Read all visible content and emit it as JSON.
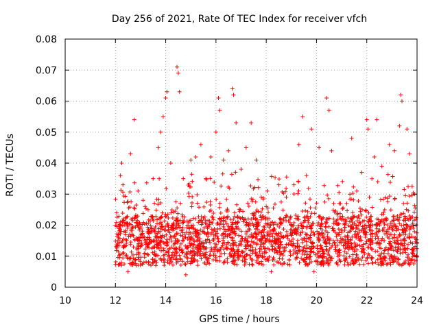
{
  "chart_data": {
    "type": "scatter",
    "title": "Day 256 of 2021, Rate Of TEC Index for receiver vfch",
    "xlabel": "GPS time / hours",
    "ylabel": "ROTI / TECUs",
    "xlim": [
      10,
      24
    ],
    "ylim": [
      0,
      0.08
    ],
    "grid": true,
    "marker": "+",
    "series_color": "#ff0000",
    "x_ticks": [
      10,
      12,
      14,
      16,
      18,
      20,
      22,
      24
    ],
    "x_tick_labels": [
      "10",
      "12",
      "14",
      "16",
      "18",
      "20",
      "22",
      "24"
    ],
    "y_ticks": [
      0,
      0.01,
      0.02,
      0.03,
      0.04,
      0.05,
      0.06,
      0.07,
      0.08
    ],
    "y_tick_labels": [
      "0",
      "0.01",
      "0.02",
      "0.03",
      "0.04",
      "0.05",
      "0.06",
      "0.07",
      "0.08"
    ],
    "series": [
      {
        "name": "ROTI",
        "points": [
          [
            12.0,
            0.02
          ],
          [
            12.05,
            0.024
          ],
          [
            12.1,
            0.015
          ],
          [
            12.2,
            0.036
          ],
          [
            12.25,
            0.04
          ],
          [
            12.3,
            0.033
          ],
          [
            12.5,
            0.005
          ],
          [
            12.6,
            0.043
          ],
          [
            12.75,
            0.054
          ],
          [
            12.9,
            0.031
          ],
          [
            13.1,
            0.028
          ],
          [
            13.3,
            0.025
          ],
          [
            13.5,
            0.035
          ],
          [
            13.7,
            0.045
          ],
          [
            13.8,
            0.05
          ],
          [
            13.9,
            0.055
          ],
          [
            14.0,
            0.061
          ],
          [
            14.05,
            0.063
          ],
          [
            14.2,
            0.04
          ],
          [
            14.45,
            0.071
          ],
          [
            14.5,
            0.069
          ],
          [
            14.55,
            0.063
          ],
          [
            14.7,
            0.035
          ],
          [
            14.8,
            0.004
          ],
          [
            15.0,
            0.041
          ],
          [
            15.2,
            0.042
          ],
          [
            15.4,
            0.046
          ],
          [
            15.6,
            0.035
          ],
          [
            15.8,
            0.042
          ],
          [
            16.0,
            0.05
          ],
          [
            16.1,
            0.061
          ],
          [
            16.15,
            0.057
          ],
          [
            16.3,
            0.041
          ],
          [
            16.5,
            0.044
          ],
          [
            16.65,
            0.064
          ],
          [
            16.7,
            0.062
          ],
          [
            16.8,
            0.053
          ],
          [
            17.0,
            0.038
          ],
          [
            17.2,
            0.045
          ],
          [
            17.4,
            0.053
          ],
          [
            17.6,
            0.041
          ],
          [
            17.8,
            0.029
          ],
          [
            18.0,
            0.026
          ],
          [
            18.2,
            0.005
          ],
          [
            18.5,
            0.033
          ],
          [
            18.8,
            0.029
          ],
          [
            19.1,
            0.033
          ],
          [
            19.3,
            0.046
          ],
          [
            19.45,
            0.055
          ],
          [
            19.6,
            0.036
          ],
          [
            19.8,
            0.051
          ],
          [
            19.9,
            0.005
          ],
          [
            20.1,
            0.045
          ],
          [
            20.4,
            0.061
          ],
          [
            20.5,
            0.057
          ],
          [
            20.6,
            0.044
          ],
          [
            20.9,
            0.027
          ],
          [
            21.2,
            0.027
          ],
          [
            21.4,
            0.048
          ],
          [
            21.6,
            0.031
          ],
          [
            21.8,
            0.037
          ],
          [
            22.0,
            0.054
          ],
          [
            22.05,
            0.051
          ],
          [
            22.3,
            0.042
          ],
          [
            22.4,
            0.054
          ],
          [
            22.6,
            0.039
          ],
          [
            22.9,
            0.046
          ],
          [
            23.1,
            0.044
          ],
          [
            23.3,
            0.052
          ],
          [
            23.35,
            0.062
          ],
          [
            23.4,
            0.06
          ],
          [
            23.6,
            0.051
          ],
          [
            23.7,
            0.043
          ],
          [
            23.9,
            0.03
          ],
          [
            24.0,
            0.01
          ]
        ]
      }
    ]
  }
}
